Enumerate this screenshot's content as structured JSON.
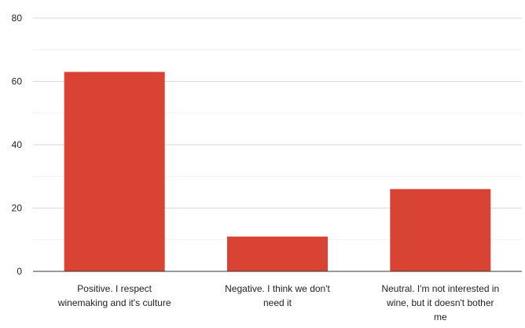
{
  "colors": {
    "bar": "#d84334",
    "grid_major": "#d9d9d9",
    "grid_minor": "#efefef",
    "axis": "#333333",
    "text": "#222222"
  },
  "chart_data": {
    "type": "bar",
    "title": "",
    "xlabel": "",
    "ylabel": "",
    "categories": [
      [
        "Positive. I respect",
        "winemaking and it's culture"
      ],
      [
        "Negative. I think we don't",
        "need it"
      ],
      [
        "Neutral. I'm not interested in",
        "wine, but it doesn't bother",
        "me"
      ]
    ],
    "values": [
      63,
      11,
      26
    ],
    "ylim": [
      0,
      80
    ],
    "yticks": [
      "0",
      "20",
      "40",
      "60",
      "80"
    ],
    "grid": true,
    "legend": "none"
  }
}
